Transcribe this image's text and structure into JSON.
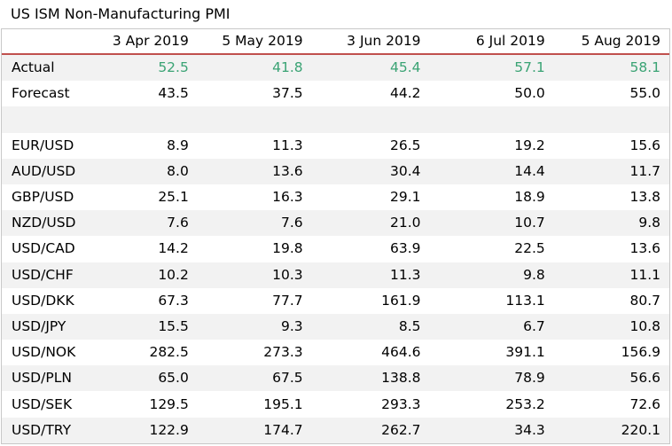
{
  "title": "US ISM Non-Manufacturing PMI",
  "columns": [
    "3 Apr 2019",
    "5 May 2019",
    "3 Jun 2019",
    "6 Jul 2019",
    "5 Aug 2019"
  ],
  "rows": [
    {
      "label": "Actual",
      "values": [
        "52.5",
        "41.8",
        "45.4",
        "57.1",
        "58.1"
      ],
      "highlight": true
    },
    {
      "label": "Forecast",
      "values": [
        "43.5",
        "37.5",
        "44.2",
        "50.0",
        "55.0"
      ]
    },
    {
      "label": "",
      "values": [
        "",
        "",
        "",
        "",
        ""
      ]
    },
    {
      "label": "EUR/USD",
      "values": [
        "8.9",
        "11.3",
        "26.5",
        "19.2",
        "15.6"
      ]
    },
    {
      "label": "AUD/USD",
      "values": [
        "8.0",
        "13.6",
        "30.4",
        "14.4",
        "11.7"
      ]
    },
    {
      "label": "GBP/USD",
      "values": [
        "25.1",
        "16.3",
        "29.1",
        "18.9",
        "13.8"
      ]
    },
    {
      "label": "NZD/USD",
      "values": [
        "7.6",
        "7.6",
        "21.0",
        "10.7",
        "9.8"
      ]
    },
    {
      "label": "USD/CAD",
      "values": [
        "14.2",
        "19.8",
        "63.9",
        "22.5",
        "13.6"
      ]
    },
    {
      "label": "USD/CHF",
      "values": [
        "10.2",
        "10.3",
        "11.3",
        "9.8",
        "11.1"
      ]
    },
    {
      "label": "USD/DKK",
      "values": [
        "67.3",
        "77.7",
        "161.9",
        "113.1",
        "80.7"
      ]
    },
    {
      "label": "USD/JPY",
      "values": [
        "15.5",
        "9.3",
        "8.5",
        "6.7",
        "10.8"
      ]
    },
    {
      "label": "USD/NOK",
      "values": [
        "282.5",
        "273.3",
        "464.6",
        "391.1",
        "156.9"
      ]
    },
    {
      "label": "USD/PLN",
      "values": [
        "65.0",
        "67.5",
        "138.8",
        "78.9",
        "56.6"
      ]
    },
    {
      "label": "USD/SEK",
      "values": [
        "129.5",
        "195.1",
        "293.3",
        "253.2",
        "72.6"
      ]
    },
    {
      "label": "USD/TRY",
      "values": [
        "122.9",
        "174.7",
        "262.7",
        "34.3",
        "220.1"
      ]
    }
  ],
  "colors": {
    "actual_text": "#3aa374",
    "header_rule": "#c0504d",
    "shade_row": "#f2f2f2"
  }
}
